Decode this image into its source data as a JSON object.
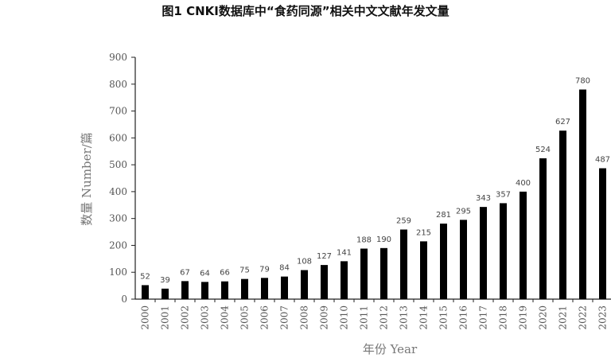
{
  "chart_data": {
    "type": "bar",
    "title": "图1 CNKI数据库中“食药同源”相关中文文献年发文量",
    "xlabel": "年份 Year",
    "ylabel": "数量 Number/篇",
    "categories": [
      "2000",
      "2001",
      "2002",
      "2003",
      "2004",
      "2005",
      "2006",
      "2007",
      "2008",
      "2009",
      "2010",
      "2011",
      "2012",
      "2013",
      "2014",
      "2015",
      "2016",
      "2017",
      "2018",
      "2019",
      "2020",
      "2021",
      "2022",
      "2023"
    ],
    "values": [
      52,
      39,
      67,
      64,
      66,
      75,
      79,
      84,
      108,
      127,
      141,
      188,
      190,
      259,
      215,
      281,
      295,
      343,
      357,
      400,
      524,
      627,
      780,
      487
    ],
    "ylim": [
      0,
      900
    ],
    "yticks": [
      0,
      100,
      200,
      300,
      400,
      500,
      600,
      700,
      800,
      900
    ],
    "grid": false,
    "legend": "none",
    "bar_color": "#000000"
  }
}
